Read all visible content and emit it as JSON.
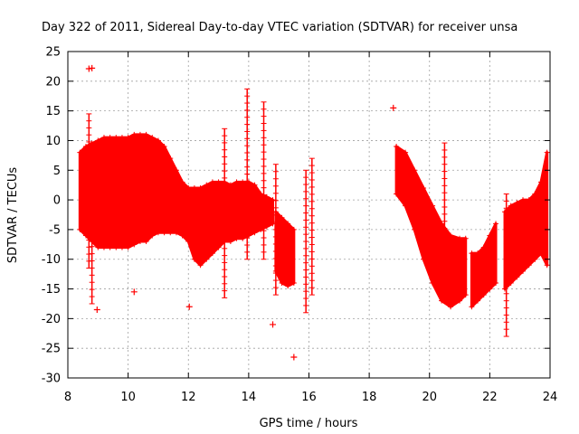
{
  "chart_data": {
    "type": "scatter",
    "title": "Day 322 of 2011, Sidereal Day-to-day VTEC variation (SDTVAR) for receiver unsa",
    "xlabel": "GPS time / hours",
    "ylabel": "SDTVAR / TECUs",
    "xlim": [
      8,
      24
    ],
    "ylim": [
      -30,
      25
    ],
    "xticks": [
      8,
      10,
      12,
      14,
      16,
      18,
      20,
      22,
      24
    ],
    "yticks": [
      -30,
      -25,
      -20,
      -15,
      -10,
      -5,
      0,
      5,
      10,
      15,
      20,
      25
    ],
    "grid": true,
    "series_color": "#ff0000",
    "marker": "plus",
    "bands": [
      {
        "x": [
          8.4,
          8.6,
          8.8,
          9.0,
          9.2,
          9.4,
          9.6,
          9.8,
          10.0,
          10.2,
          10.4,
          10.6,
          10.8,
          11.0,
          11.2,
          11.4,
          11.6,
          11.8,
          12.0,
          12.2,
          12.4,
          12.6,
          12.8,
          13.0,
          13.2,
          13.4,
          13.6,
          13.8,
          14.0,
          14.2,
          14.4,
          14.6,
          14.8
        ],
        "upper": [
          8,
          9,
          9.5,
          10,
          10.5,
          10.5,
          10.5,
          10.5,
          10.5,
          11,
          11,
          11,
          10.5,
          10,
          9,
          7,
          5,
          3,
          2,
          2,
          2,
          2.5,
          3,
          3,
          3,
          2.5,
          3,
          3,
          3,
          2.5,
          1,
          0.5,
          0
        ],
        "lower": [
          -5,
          -6,
          -7,
          -8,
          -8,
          -8,
          -8,
          -8,
          -8,
          -7.5,
          -7,
          -7,
          -6,
          -5.5,
          -5.5,
          -5.5,
          -5.5,
          -6,
          -7,
          -10,
          -11,
          -10,
          -9,
          -8,
          -7,
          -7,
          -6.5,
          -6.5,
          -6,
          -5.5,
          -5,
          -4.5,
          -4
        ]
      },
      {
        "x": [
          14.9,
          15.1,
          15.3,
          15.5
        ],
        "upper": [
          -2,
          -3,
          -4,
          -5
        ],
        "lower": [
          -12,
          -14,
          -14.5,
          -14
        ]
      },
      {
        "x": [
          18.9,
          19.2,
          19.5,
          19.8,
          20.1,
          20.4,
          20.7,
          21.0,
          21.2
        ],
        "upper": [
          9,
          8,
          5,
          2,
          -1,
          -4,
          -6,
          -6.5,
          -6.5
        ],
        "lower": [
          1,
          -1,
          -5,
          -10,
          -14,
          -17,
          -18,
          -17,
          -16
        ]
      },
      {
        "x": [
          21.4,
          21.6,
          21.8,
          22.0,
          22.2
        ],
        "upper": [
          -9,
          -9,
          -8,
          -6,
          -4
        ],
        "lower": [
          -18,
          -17,
          -16,
          -15,
          -14
        ]
      },
      {
        "x": [
          22.5,
          22.7,
          22.9,
          23.1,
          23.3,
          23.5,
          23.7,
          23.9
        ],
        "upper": [
          -2,
          -1,
          -0.5,
          0,
          0,
          1,
          3,
          8
        ],
        "lower": [
          -15,
          -14,
          -13,
          -12,
          -11,
          -10,
          -9,
          -11
        ]
      }
    ],
    "spikes": [
      {
        "x": 8.7,
        "y": [
          -11.5,
          14.5
        ]
      },
      {
        "x": 8.8,
        "y": [
          -17.5,
          9
        ]
      },
      {
        "x": 13.2,
        "y": [
          -16.5,
          12
        ]
      },
      {
        "x": 13.95,
        "y": [
          -10,
          18.7
        ]
      },
      {
        "x": 14.5,
        "y": [
          -10,
          16.5
        ]
      },
      {
        "x": 14.9,
        "y": [
          -16,
          6
        ]
      },
      {
        "x": 15.9,
        "y": [
          -19,
          5
        ]
      },
      {
        "x": 16.1,
        "y": [
          -16,
          7
        ]
      },
      {
        "x": 20.5,
        "y": [
          -12,
          9.6
        ]
      },
      {
        "x": 22.55,
        "y": [
          -23,
          1
        ]
      }
    ],
    "outliers": [
      {
        "x": 8.7,
        "y": 22.1
      },
      {
        "x": 8.8,
        "y": 22.2
      },
      {
        "x": 8.97,
        "y": -18.5
      },
      {
        "x": 10.2,
        "y": -15.5
      },
      {
        "x": 12.03,
        "y": -18
      },
      {
        "x": 14.8,
        "y": -21
      },
      {
        "x": 15.5,
        "y": -26.5
      },
      {
        "x": 18.8,
        "y": 15.5
      }
    ]
  }
}
